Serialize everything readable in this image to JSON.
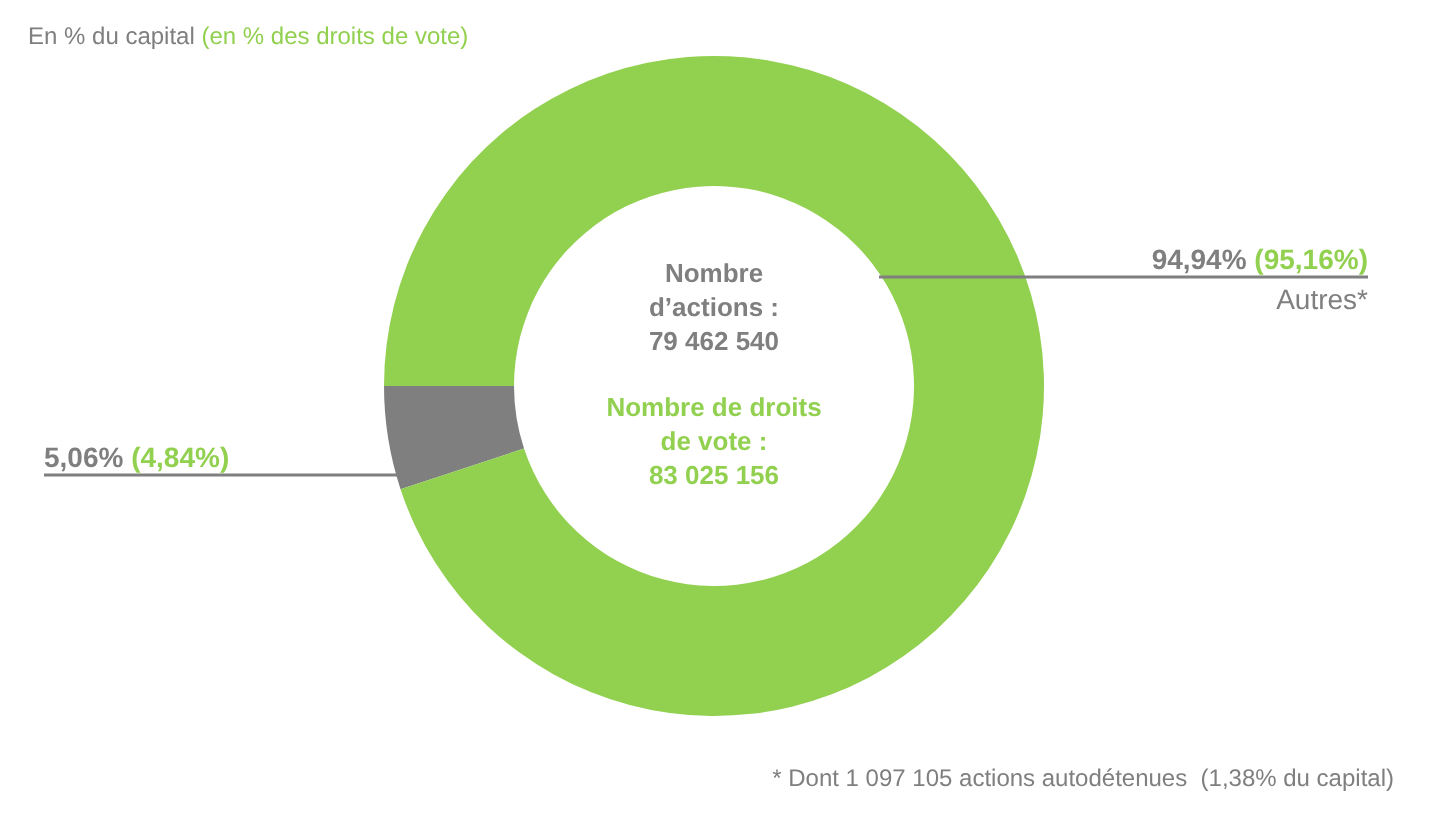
{
  "chart_data": {
    "type": "donut",
    "title": "En % du capital",
    "subtitle": "(en % des droits de vote)",
    "categories": [
      null,
      "Autres*"
    ],
    "values": [
      5.06,
      94.94
    ],
    "colors": [
      "#7f7f7f",
      "#92d050"
    ],
    "value_labels": [
      "5,06% (4,84%)",
      "94,94% (95,16%)"
    ],
    "annotations": [
      "Nombre d’actions : 79 462 540",
      "Nombre de droits de vote : 83 025 156",
      "* Dont 1 097 105 actions autodétenues  (1,38% du capital)"
    ]
  }
}
